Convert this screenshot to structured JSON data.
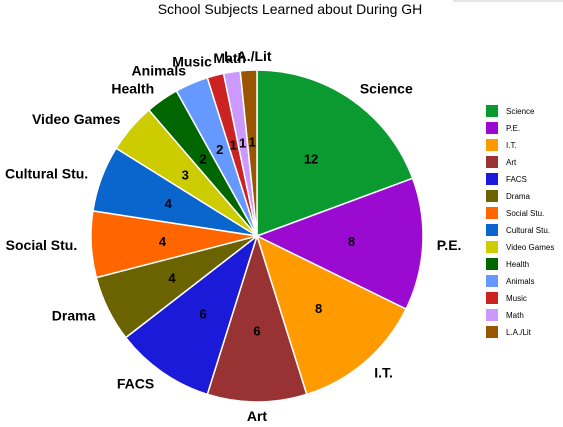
{
  "chart_data": {
    "type": "pie",
    "title": "School Subjects Learned about During GH",
    "legend_position": "right",
    "start": "top-clockwise",
    "slices": [
      {
        "label": "Science",
        "value": 12,
        "color": "#0a9a30"
      },
      {
        "label": "P.E.",
        "value": 8,
        "color": "#9a0ad0"
      },
      {
        "label": "I.T.",
        "value": 8,
        "color": "#ff9a00"
      },
      {
        "label": "Art",
        "value": 6,
        "color": "#993333"
      },
      {
        "label": "FACS",
        "value": 6,
        "color": "#1a1ad8"
      },
      {
        "label": "Drama",
        "value": 4,
        "color": "#6b6300"
      },
      {
        "label": "Social Stu.",
        "value": 4,
        "color": "#ff6600"
      },
      {
        "label": "Cultural Stu.",
        "value": 4,
        "color": "#0a66cc"
      },
      {
        "label": "Video Games",
        "value": 3,
        "color": "#cccc00"
      },
      {
        "label": "Health",
        "value": 2,
        "color": "#006600"
      },
      {
        "label": "Animals",
        "value": 2,
        "color": "#6699ff"
      },
      {
        "label": "Music",
        "value": 1,
        "color": "#cc2222"
      },
      {
        "label": "Math",
        "value": 1,
        "color": "#cc99ff"
      },
      {
        "label": "L.A./Lit",
        "value": 1,
        "color": "#995500"
      }
    ]
  }
}
